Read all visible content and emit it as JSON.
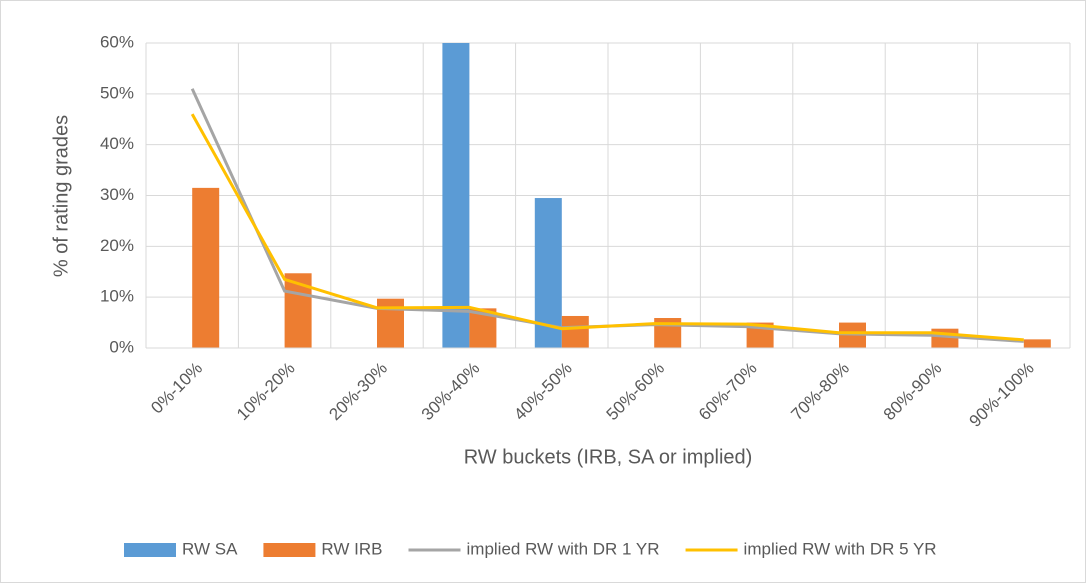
{
  "chart_data": {
    "type": "bar_line",
    "y_label": "% of rating grades",
    "x_label": "RW buckets (IRB, SA or implied)",
    "categories": [
      "0%-10%",
      "10%-20%",
      "20%-30%",
      "30%-40%",
      "40%-50%",
      "50%-60%",
      "60%-70%",
      "70%-80%",
      "80%-90%",
      "90%-100%"
    ],
    "series": [
      {
        "name": "RW SA",
        "kind": "bar",
        "color": "#5b9bd5",
        "values": [
          0,
          0,
          0,
          60,
          29.5,
          0,
          0,
          0,
          0,
          0
        ]
      },
      {
        "name": "RW IRB",
        "kind": "bar",
        "color": "#ed7d31",
        "values": [
          31.5,
          14.7,
          9.7,
          7.8,
          6.3,
          5.9,
          5.0,
          5.0,
          3.8,
          1.7
        ]
      },
      {
        "name": "implied RW with DR 1 YR",
        "kind": "line",
        "color": "#a5a5a5",
        "values": [
          51,
          11.2,
          7.8,
          7.2,
          4.0,
          4.6,
          4.2,
          2.8,
          2.5,
          1.3
        ]
      },
      {
        "name": "implied RW with DR 5 YR",
        "kind": "line",
        "color": "#ffc000",
        "values": [
          46,
          13.5,
          7.9,
          8.0,
          3.8,
          4.8,
          4.7,
          3.0,
          3.0,
          1.6
        ]
      }
    ],
    "ylim": [
      0,
      60
    ],
    "yticks": [
      {
        "value": 0,
        "label": "0%"
      },
      {
        "value": 10,
        "label": "10%"
      },
      {
        "value": 20,
        "label": "20%"
      },
      {
        "value": 30,
        "label": "30%"
      },
      {
        "value": 40,
        "label": "40%"
      },
      {
        "value": 50,
        "label": "50%"
      },
      {
        "value": 60,
        "label": "60%"
      }
    ],
    "grid": true,
    "legend": "bottom"
  }
}
